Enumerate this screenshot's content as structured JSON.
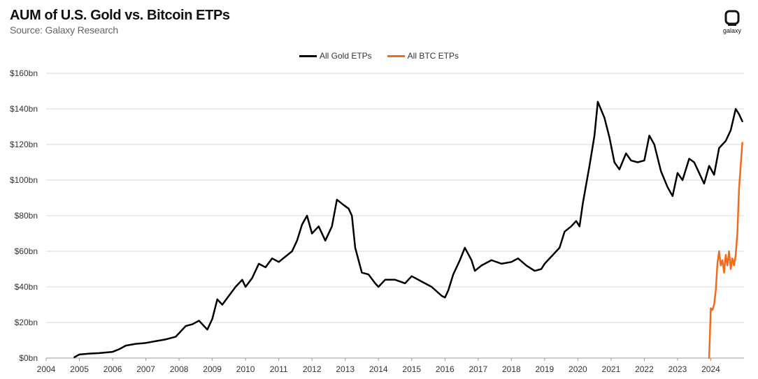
{
  "header": {
    "title": "AUM of U.S. Gold vs. Bitcoin ETPs",
    "subtitle": "Source: Galaxy Research"
  },
  "logo": {
    "text": "galaxy",
    "icon": "galaxy-logo-icon"
  },
  "colors": {
    "gold": "#000000",
    "btc": "#f26b1d",
    "grid": "#d9d9d9"
  },
  "chart_data": {
    "type": "line",
    "title": "AUM of U.S. Gold vs. Bitcoin ETPs",
    "subtitle": "Source: Galaxy Research",
    "xlabel": "",
    "ylabel": "",
    "xlim": [
      2004,
      2025
    ],
    "ylim": [
      0,
      160
    ],
    "x_ticks": [
      2004,
      2005,
      2006,
      2007,
      2008,
      2009,
      2010,
      2011,
      2012,
      2013,
      2014,
      2015,
      2016,
      2017,
      2018,
      2019,
      2020,
      2021,
      2022,
      2023,
      2024
    ],
    "x_tick_labels": [
      "2004",
      "2005",
      "2006",
      "2007",
      "2008",
      "2009",
      "2010",
      "2011",
      "2012",
      "2013",
      "2014",
      "2015",
      "2016",
      "2017",
      "2018",
      "2019",
      "2020",
      "2021",
      "2022",
      "2023",
      "2024"
    ],
    "y_ticks": [
      0,
      20,
      40,
      60,
      80,
      100,
      120,
      140,
      160
    ],
    "y_tick_labels": [
      "$0bn",
      "$20bn",
      "$40bn",
      "$60bn",
      "$80bn",
      "$100bn",
      "$120bn",
      "$140bn",
      "$160bn"
    ],
    "grid": "horizontal",
    "legend_position": "top-center",
    "series": [
      {
        "name": "All Gold ETPs",
        "color": "#000000",
        "points": [
          [
            2004.85,
            0.5
          ],
          [
            2005.0,
            2
          ],
          [
            2005.3,
            2.5
          ],
          [
            2005.6,
            2.8
          ],
          [
            2006.0,
            3.5
          ],
          [
            2006.2,
            5
          ],
          [
            2006.4,
            7
          ],
          [
            2006.7,
            8
          ],
          [
            2007.0,
            8.5
          ],
          [
            2007.3,
            9.5
          ],
          [
            2007.6,
            10.5
          ],
          [
            2007.9,
            12
          ],
          [
            2008.0,
            14
          ],
          [
            2008.2,
            18
          ],
          [
            2008.4,
            19
          ],
          [
            2008.6,
            21
          ],
          [
            2008.75,
            18
          ],
          [
            2008.85,
            16
          ],
          [
            2009.0,
            22
          ],
          [
            2009.15,
            33
          ],
          [
            2009.3,
            30
          ],
          [
            2009.5,
            35
          ],
          [
            2009.7,
            40
          ],
          [
            2009.9,
            44
          ],
          [
            2010.0,
            40
          ],
          [
            2010.2,
            45
          ],
          [
            2010.4,
            53
          ],
          [
            2010.6,
            51
          ],
          [
            2010.8,
            56
          ],
          [
            2011.0,
            54
          ],
          [
            2011.2,
            57
          ],
          [
            2011.4,
            60
          ],
          [
            2011.55,
            66
          ],
          [
            2011.7,
            75
          ],
          [
            2011.85,
            80
          ],
          [
            2012.0,
            70
          ],
          [
            2012.2,
            74
          ],
          [
            2012.4,
            66
          ],
          [
            2012.6,
            74
          ],
          [
            2012.75,
            89
          ],
          [
            2012.95,
            86
          ],
          [
            2013.1,
            84
          ],
          [
            2013.2,
            80
          ],
          [
            2013.3,
            62
          ],
          [
            2013.5,
            48
          ],
          [
            2013.7,
            47
          ],
          [
            2013.9,
            42
          ],
          [
            2014.0,
            40
          ],
          [
            2014.2,
            44
          ],
          [
            2014.5,
            44
          ],
          [
            2014.8,
            42
          ],
          [
            2015.0,
            46
          ],
          [
            2015.3,
            43
          ],
          [
            2015.6,
            40
          ],
          [
            2015.9,
            35
          ],
          [
            2016.0,
            34
          ],
          [
            2016.1,
            38
          ],
          [
            2016.25,
            47
          ],
          [
            2016.45,
            55
          ],
          [
            2016.6,
            62
          ],
          [
            2016.8,
            55
          ],
          [
            2016.9,
            49
          ],
          [
            2017.1,
            52
          ],
          [
            2017.4,
            55
          ],
          [
            2017.7,
            53
          ],
          [
            2018.0,
            54
          ],
          [
            2018.2,
            56
          ],
          [
            2018.45,
            52
          ],
          [
            2018.7,
            49
          ],
          [
            2018.9,
            50
          ],
          [
            2019.0,
            53
          ],
          [
            2019.25,
            58
          ],
          [
            2019.45,
            62
          ],
          [
            2019.6,
            71
          ],
          [
            2019.8,
            74
          ],
          [
            2019.95,
            77
          ],
          [
            2020.05,
            74
          ],
          [
            2020.15,
            87
          ],
          [
            2020.35,
            108
          ],
          [
            2020.5,
            125
          ],
          [
            2020.6,
            144
          ],
          [
            2020.8,
            135
          ],
          [
            2020.95,
            124
          ],
          [
            2021.1,
            110
          ],
          [
            2021.25,
            106
          ],
          [
            2021.45,
            115
          ],
          [
            2021.6,
            111
          ],
          [
            2021.8,
            110
          ],
          [
            2022.0,
            111
          ],
          [
            2022.15,
            125
          ],
          [
            2022.3,
            120
          ],
          [
            2022.5,
            105
          ],
          [
            2022.7,
            96
          ],
          [
            2022.85,
            91
          ],
          [
            2023.0,
            104
          ],
          [
            2023.15,
            100
          ],
          [
            2023.35,
            112
          ],
          [
            2023.5,
            110
          ],
          [
            2023.65,
            104
          ],
          [
            2023.8,
            98
          ],
          [
            2023.95,
            108
          ],
          [
            2024.1,
            103
          ],
          [
            2024.25,
            118
          ],
          [
            2024.45,
            122
          ],
          [
            2024.6,
            128
          ],
          [
            2024.75,
            140
          ],
          [
            2024.85,
            137
          ],
          [
            2024.95,
            133
          ]
        ]
      },
      {
        "name": "All BTC ETPs",
        "color": "#f26b1d",
        "points": [
          [
            2023.95,
            0
          ],
          [
            2024.0,
            28
          ],
          [
            2024.05,
            27
          ],
          [
            2024.1,
            30
          ],
          [
            2024.15,
            38
          ],
          [
            2024.2,
            53
          ],
          [
            2024.25,
            60
          ],
          [
            2024.3,
            52
          ],
          [
            2024.35,
            55
          ],
          [
            2024.4,
            48
          ],
          [
            2024.45,
            58
          ],
          [
            2024.5,
            52
          ],
          [
            2024.55,
            60
          ],
          [
            2024.6,
            50
          ],
          [
            2024.65,
            56
          ],
          [
            2024.7,
            52
          ],
          [
            2024.75,
            58
          ],
          [
            2024.8,
            70
          ],
          [
            2024.85,
            95
          ],
          [
            2024.9,
            108
          ],
          [
            2024.95,
            121
          ]
        ]
      }
    ]
  }
}
